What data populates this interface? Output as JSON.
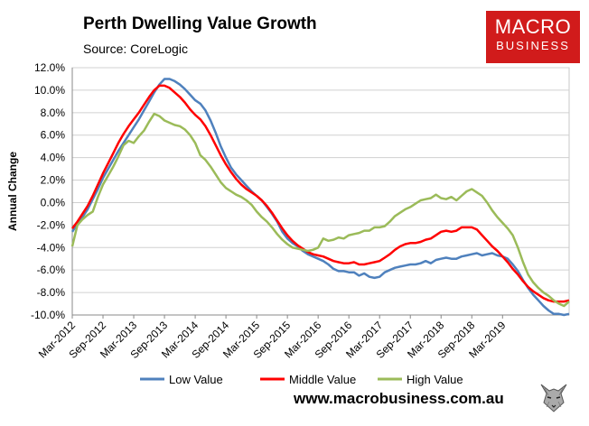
{
  "header": {
    "title": "Perth Dwelling Value Growth",
    "source": "Source: CoreLogic"
  },
  "logo": {
    "line1": "MACRO",
    "line2": "BUSINESS"
  },
  "footer": {
    "url": "www.macrobusiness.com.au"
  },
  "colors": {
    "low": "#4f81bd",
    "middle": "#ff0000",
    "high": "#9bbb59",
    "logo_bg": "#d11b1b"
  },
  "chart_data": {
    "type": "line",
    "title": "Perth Dwelling Value Growth",
    "xlabel": "",
    "ylabel": "Annual Change",
    "ylim": [
      -10,
      12
    ],
    "yticks": [
      -10,
      -8,
      -6,
      -4,
      -2,
      0,
      2,
      4,
      6,
      8,
      10,
      12
    ],
    "ytick_labels": [
      "-10.0%",
      "-8.0%",
      "-6.0%",
      "-4.0%",
      "-2.0%",
      "0.0%",
      "2.0%",
      "4.0%",
      "6.0%",
      "8.0%",
      "10.0%",
      "12.0%"
    ],
    "xticks": [
      "Mar-2012",
      "Sep-2012",
      "Mar-2013",
      "Sep-2013",
      "Mar-2014",
      "Sep-2014",
      "Mar-2015",
      "Sep-2015",
      "Mar-2016",
      "Sep-2016",
      "Mar-2017",
      "Sep-2017",
      "Mar-2018",
      "Sep-2018",
      "Mar-2019"
    ],
    "x_start": "Mar-2012",
    "x_end": "Aug-2019",
    "legend_position": "bottom",
    "series": [
      {
        "name": "Low Value",
        "color": "#4f81bd",
        "points": [
          [
            0,
            -2.6
          ],
          [
            1,
            -1.9
          ],
          [
            2,
            -1.3
          ],
          [
            3,
            -0.6
          ],
          [
            4,
            0.3
          ],
          [
            5,
            1.2
          ],
          [
            6,
            2.2
          ],
          [
            7,
            3.0
          ],
          [
            8,
            3.8
          ],
          [
            9,
            4.6
          ],
          [
            10,
            5.3
          ],
          [
            11,
            6.0
          ],
          [
            12,
            6.7
          ],
          [
            13,
            7.4
          ],
          [
            14,
            8.2
          ],
          [
            15,
            9.0
          ],
          [
            16,
            9.8
          ],
          [
            17,
            10.5
          ],
          [
            18,
            11.0
          ],
          [
            19,
            11.0
          ],
          [
            20,
            10.8
          ],
          [
            21,
            10.5
          ],
          [
            22,
            10.1
          ],
          [
            23,
            9.6
          ],
          [
            24,
            9.1
          ],
          [
            25,
            8.8
          ],
          [
            26,
            8.2
          ],
          [
            27,
            7.3
          ],
          [
            28,
            6.2
          ],
          [
            29,
            5.0
          ],
          [
            30,
            4.0
          ],
          [
            31,
            3.1
          ],
          [
            32,
            2.5
          ],
          [
            33,
            2.0
          ],
          [
            34,
            1.5
          ],
          [
            35,
            1.0
          ],
          [
            36,
            0.6
          ],
          [
            37,
            0.2
          ],
          [
            38,
            -0.4
          ],
          [
            39,
            -1.0
          ],
          [
            40,
            -1.7
          ],
          [
            41,
            -2.6
          ],
          [
            42,
            -3.2
          ],
          [
            43,
            -3.6
          ],
          [
            44,
            -3.9
          ],
          [
            45,
            -4.3
          ],
          [
            46,
            -4.6
          ],
          [
            47,
            -4.8
          ],
          [
            48,
            -5.0
          ],
          [
            49,
            -5.2
          ],
          [
            50,
            -5.5
          ],
          [
            51,
            -5.9
          ],
          [
            52,
            -6.1
          ],
          [
            53,
            -6.1
          ],
          [
            54,
            -6.2
          ],
          [
            55,
            -6.2
          ],
          [
            56,
            -6.5
          ],
          [
            57,
            -6.3
          ],
          [
            58,
            -6.6
          ],
          [
            59,
            -6.7
          ],
          [
            60,
            -6.6
          ],
          [
            61,
            -6.2
          ],
          [
            62,
            -6.0
          ],
          [
            63,
            -5.8
          ],
          [
            64,
            -5.7
          ],
          [
            65,
            -5.6
          ],
          [
            66,
            -5.5
          ],
          [
            67,
            -5.5
          ],
          [
            68,
            -5.4
          ],
          [
            69,
            -5.2
          ],
          [
            70,
            -5.4
          ],
          [
            71,
            -5.1
          ],
          [
            72,
            -5.0
          ],
          [
            73,
            -4.9
          ],
          [
            74,
            -5.0
          ],
          [
            75,
            -5.0
          ],
          [
            76,
            -4.8
          ],
          [
            77,
            -4.7
          ],
          [
            78,
            -4.6
          ],
          [
            79,
            -4.5
          ],
          [
            80,
            -4.7
          ],
          [
            81,
            -4.6
          ],
          [
            82,
            -4.5
          ],
          [
            83,
            -4.7
          ],
          [
            84,
            -4.8
          ],
          [
            85,
            -5.0
          ],
          [
            86,
            -5.5
          ],
          [
            87,
            -6.1
          ],
          [
            88,
            -6.9
          ],
          [
            89,
            -7.6
          ],
          [
            90,
            -8.2
          ],
          [
            91,
            -8.7
          ],
          [
            92,
            -9.2
          ],
          [
            93,
            -9.6
          ],
          [
            94,
            -9.9
          ],
          [
            95,
            -9.9
          ],
          [
            96,
            -10.0
          ],
          [
            97,
            -9.9
          ]
        ]
      },
      {
        "name": "Middle Value",
        "color": "#ff0000",
        "points": [
          [
            0,
            -2.3
          ],
          [
            1,
            -1.7
          ],
          [
            2,
            -1.0
          ],
          [
            3,
            -0.3
          ],
          [
            4,
            0.6
          ],
          [
            5,
            1.6
          ],
          [
            6,
            2.6
          ],
          [
            7,
            3.5
          ],
          [
            8,
            4.4
          ],
          [
            9,
            5.3
          ],
          [
            10,
            6.1
          ],
          [
            11,
            6.8
          ],
          [
            12,
            7.4
          ],
          [
            13,
            8.0
          ],
          [
            14,
            8.7
          ],
          [
            15,
            9.4
          ],
          [
            16,
            10.0
          ],
          [
            17,
            10.4
          ],
          [
            18,
            10.4
          ],
          [
            19,
            10.2
          ],
          [
            20,
            9.8
          ],
          [
            21,
            9.4
          ],
          [
            22,
            8.9
          ],
          [
            23,
            8.3
          ],
          [
            24,
            7.8
          ],
          [
            25,
            7.4
          ],
          [
            26,
            6.8
          ],
          [
            27,
            6.0
          ],
          [
            28,
            5.1
          ],
          [
            29,
            4.2
          ],
          [
            30,
            3.4
          ],
          [
            31,
            2.7
          ],
          [
            32,
            2.1
          ],
          [
            33,
            1.6
          ],
          [
            34,
            1.2
          ],
          [
            35,
            0.9
          ],
          [
            36,
            0.6
          ],
          [
            37,
            0.2
          ],
          [
            38,
            -0.3
          ],
          [
            39,
            -0.9
          ],
          [
            40,
            -1.6
          ],
          [
            41,
            -2.3
          ],
          [
            42,
            -2.9
          ],
          [
            43,
            -3.4
          ],
          [
            44,
            -3.8
          ],
          [
            45,
            -4.1
          ],
          [
            46,
            -4.4
          ],
          [
            47,
            -4.6
          ],
          [
            48,
            -4.7
          ],
          [
            49,
            -4.8
          ],
          [
            50,
            -5.0
          ],
          [
            51,
            -5.2
          ],
          [
            52,
            -5.3
          ],
          [
            53,
            -5.4
          ],
          [
            54,
            -5.4
          ],
          [
            55,
            -5.3
          ],
          [
            56,
            -5.5
          ],
          [
            57,
            -5.5
          ],
          [
            58,
            -5.4
          ],
          [
            59,
            -5.3
          ],
          [
            60,
            -5.2
          ],
          [
            61,
            -4.9
          ],
          [
            62,
            -4.6
          ],
          [
            63,
            -4.2
          ],
          [
            64,
            -3.9
          ],
          [
            65,
            -3.7
          ],
          [
            66,
            -3.6
          ],
          [
            67,
            -3.6
          ],
          [
            68,
            -3.5
          ],
          [
            69,
            -3.3
          ],
          [
            70,
            -3.2
          ],
          [
            71,
            -2.9
          ],
          [
            72,
            -2.6
          ],
          [
            73,
            -2.5
          ],
          [
            74,
            -2.6
          ],
          [
            75,
            -2.5
          ],
          [
            76,
            -2.2
          ],
          [
            77,
            -2.2
          ],
          [
            78,
            -2.2
          ],
          [
            79,
            -2.4
          ],
          [
            80,
            -2.9
          ],
          [
            81,
            -3.4
          ],
          [
            82,
            -3.9
          ],
          [
            83,
            -4.3
          ],
          [
            84,
            -4.8
          ],
          [
            85,
            -5.3
          ],
          [
            86,
            -5.9
          ],
          [
            87,
            -6.4
          ],
          [
            88,
            -7.0
          ],
          [
            89,
            -7.5
          ],
          [
            90,
            -7.9
          ],
          [
            91,
            -8.2
          ],
          [
            92,
            -8.5
          ],
          [
            93,
            -8.7
          ],
          [
            94,
            -8.8
          ],
          [
            95,
            -8.8
          ],
          [
            96,
            -8.8
          ],
          [
            97,
            -8.7
          ]
        ]
      },
      {
        "name": "High Value",
        "color": "#9bbb59",
        "points": [
          [
            0,
            -3.9
          ],
          [
            1,
            -2.0
          ],
          [
            2,
            -1.5
          ],
          [
            3,
            -1.1
          ],
          [
            4,
            -0.8
          ],
          [
            5,
            0.5
          ],
          [
            6,
            1.6
          ],
          [
            7,
            2.4
          ],
          [
            8,
            3.2
          ],
          [
            9,
            4.1
          ],
          [
            10,
            5.1
          ],
          [
            11,
            5.5
          ],
          [
            12,
            5.3
          ],
          [
            13,
            5.9
          ],
          [
            14,
            6.4
          ],
          [
            15,
            7.2
          ],
          [
            16,
            7.9
          ],
          [
            17,
            7.7
          ],
          [
            18,
            7.3
          ],
          [
            19,
            7.1
          ],
          [
            20,
            6.9
          ],
          [
            21,
            6.8
          ],
          [
            22,
            6.5
          ],
          [
            23,
            6.0
          ],
          [
            24,
            5.3
          ],
          [
            25,
            4.2
          ],
          [
            26,
            3.8
          ],
          [
            27,
            3.2
          ],
          [
            28,
            2.5
          ],
          [
            29,
            1.8
          ],
          [
            30,
            1.3
          ],
          [
            31,
            1.0
          ],
          [
            32,
            0.7
          ],
          [
            33,
            0.5
          ],
          [
            34,
            0.2
          ],
          [
            35,
            -0.2
          ],
          [
            36,
            -0.8
          ],
          [
            37,
            -1.3
          ],
          [
            38,
            -1.7
          ],
          [
            39,
            -2.2
          ],
          [
            40,
            -2.8
          ],
          [
            41,
            -3.3
          ],
          [
            42,
            -3.7
          ],
          [
            43,
            -4.0
          ],
          [
            44,
            -4.1
          ],
          [
            45,
            -4.2
          ],
          [
            46,
            -4.3
          ],
          [
            47,
            -4.2
          ],
          [
            48,
            -4.0
          ],
          [
            49,
            -3.2
          ],
          [
            50,
            -3.4
          ],
          [
            51,
            -3.3
          ],
          [
            52,
            -3.1
          ],
          [
            53,
            -3.2
          ],
          [
            54,
            -2.9
          ],
          [
            55,
            -2.8
          ],
          [
            56,
            -2.7
          ],
          [
            57,
            -2.5
          ],
          [
            58,
            -2.5
          ],
          [
            59,
            -2.2
          ],
          [
            60,
            -2.2
          ],
          [
            61,
            -2.1
          ],
          [
            62,
            -1.7
          ],
          [
            63,
            -1.2
          ],
          [
            64,
            -0.9
          ],
          [
            65,
            -0.6
          ],
          [
            66,
            -0.4
          ],
          [
            67,
            -0.1
          ],
          [
            68,
            0.2
          ],
          [
            69,
            0.3
          ],
          [
            70,
            0.4
          ],
          [
            71,
            0.7
          ],
          [
            72,
            0.4
          ],
          [
            73,
            0.3
          ],
          [
            74,
            0.5
          ],
          [
            75,
            0.2
          ],
          [
            76,
            0.6
          ],
          [
            77,
            1.0
          ],
          [
            78,
            1.2
          ],
          [
            79,
            0.9
          ],
          [
            80,
            0.6
          ],
          [
            81,
            0.0
          ],
          [
            82,
            -0.7
          ],
          [
            83,
            -1.3
          ],
          [
            84,
            -1.8
          ],
          [
            85,
            -2.3
          ],
          [
            86,
            -2.9
          ],
          [
            87,
            -4.0
          ],
          [
            88,
            -5.3
          ],
          [
            89,
            -6.4
          ],
          [
            90,
            -7.1
          ],
          [
            91,
            -7.6
          ],
          [
            92,
            -8.0
          ],
          [
            93,
            -8.3
          ],
          [
            94,
            -8.7
          ],
          [
            95,
            -9.0
          ],
          [
            96,
            -9.2
          ],
          [
            97,
            -8.8
          ]
        ]
      }
    ]
  }
}
